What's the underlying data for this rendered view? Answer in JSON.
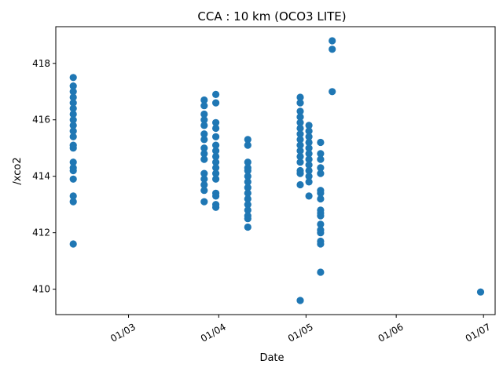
{
  "chart_data": {
    "type": "scatter",
    "title": "CCA : 10 km (OCO3 LITE)",
    "xlabel": "Date",
    "ylabel": "/xco2",
    "x_axis_type": "date",
    "xlim": [
      "2021-02-04",
      "2021-07-05"
    ],
    "ylim": [
      409.1,
      419.3
    ],
    "grid": false,
    "legend": "none",
    "xticks": [
      {
        "date": "2021-03-01",
        "label": "01/03"
      },
      {
        "date": "2021-04-01",
        "label": "01/04"
      },
      {
        "date": "2021-05-01",
        "label": "01/05"
      },
      {
        "date": "2021-06-01",
        "label": "01/06"
      },
      {
        "date": "2021-07-01",
        "label": "01/07"
      }
    ],
    "yticks": [
      410,
      412,
      414,
      416,
      418
    ],
    "marker_color": "#1f77b4",
    "series": [
      {
        "points": [
          {
            "x": "2021-02-10",
            "y": 417.5
          },
          {
            "x": "2021-02-10",
            "y": 417.2
          },
          {
            "x": "2021-02-10",
            "y": 417.0
          },
          {
            "x": "2021-02-10",
            "y": 416.8
          },
          {
            "x": "2021-02-10",
            "y": 416.6
          },
          {
            "x": "2021-02-10",
            "y": 416.4
          },
          {
            "x": "2021-02-10",
            "y": 416.2
          },
          {
            "x": "2021-02-10",
            "y": 416.0
          },
          {
            "x": "2021-02-10",
            "y": 415.8
          },
          {
            "x": "2021-02-10",
            "y": 415.6
          },
          {
            "x": "2021-02-10",
            "y": 415.4
          },
          {
            "x": "2021-02-10",
            "y": 415.1
          },
          {
            "x": "2021-02-10",
            "y": 415.0
          },
          {
            "x": "2021-02-10",
            "y": 414.5
          },
          {
            "x": "2021-02-10",
            "y": 414.3
          },
          {
            "x": "2021-02-10",
            "y": 414.2
          },
          {
            "x": "2021-02-10",
            "y": 413.9
          },
          {
            "x": "2021-02-10",
            "y": 413.3
          },
          {
            "x": "2021-02-10",
            "y": 413.1
          },
          {
            "x": "2021-02-10",
            "y": 411.6
          },
          {
            "x": "2021-03-27",
            "y": 416.7
          },
          {
            "x": "2021-03-27",
            "y": 416.5
          },
          {
            "x": "2021-03-27",
            "y": 416.2
          },
          {
            "x": "2021-03-27",
            "y": 416.0
          },
          {
            "x": "2021-03-27",
            "y": 415.8
          },
          {
            "x": "2021-03-27",
            "y": 415.5
          },
          {
            "x": "2021-03-27",
            "y": 415.3
          },
          {
            "x": "2021-03-27",
            "y": 415.0
          },
          {
            "x": "2021-03-27",
            "y": 414.8
          },
          {
            "x": "2021-03-27",
            "y": 414.6
          },
          {
            "x": "2021-03-27",
            "y": 414.1
          },
          {
            "x": "2021-03-27",
            "y": 413.9
          },
          {
            "x": "2021-03-27",
            "y": 413.7
          },
          {
            "x": "2021-03-27",
            "y": 413.5
          },
          {
            "x": "2021-03-27",
            "y": 413.1
          },
          {
            "x": "2021-03-31",
            "y": 416.9
          },
          {
            "x": "2021-03-31",
            "y": 416.6
          },
          {
            "x": "2021-03-31",
            "y": 415.9
          },
          {
            "x": "2021-03-31",
            "y": 415.7
          },
          {
            "x": "2021-03-31",
            "y": 415.4
          },
          {
            "x": "2021-03-31",
            "y": 415.1
          },
          {
            "x": "2021-03-31",
            "y": 414.9
          },
          {
            "x": "2021-03-31",
            "y": 414.7
          },
          {
            "x": "2021-03-31",
            "y": 414.5
          },
          {
            "x": "2021-03-31",
            "y": 414.3
          },
          {
            "x": "2021-03-31",
            "y": 414.1
          },
          {
            "x": "2021-03-31",
            "y": 413.9
          },
          {
            "x": "2021-03-31",
            "y": 413.4
          },
          {
            "x": "2021-03-31",
            "y": 413.3
          },
          {
            "x": "2021-03-31",
            "y": 413.0
          },
          {
            "x": "2021-03-31",
            "y": 412.9
          },
          {
            "x": "2021-04-11",
            "y": 415.3
          },
          {
            "x": "2021-04-11",
            "y": 415.1
          },
          {
            "x": "2021-04-11",
            "y": 414.5
          },
          {
            "x": "2021-04-11",
            "y": 414.3
          },
          {
            "x": "2021-04-11",
            "y": 414.2
          },
          {
            "x": "2021-04-11",
            "y": 414.0
          },
          {
            "x": "2021-04-11",
            "y": 413.8
          },
          {
            "x": "2021-04-11",
            "y": 413.6
          },
          {
            "x": "2021-04-11",
            "y": 413.4
          },
          {
            "x": "2021-04-11",
            "y": 413.2
          },
          {
            "x": "2021-04-11",
            "y": 413.0
          },
          {
            "x": "2021-04-11",
            "y": 412.8
          },
          {
            "x": "2021-04-11",
            "y": 412.6
          },
          {
            "x": "2021-04-11",
            "y": 412.5
          },
          {
            "x": "2021-04-11",
            "y": 412.2
          },
          {
            "x": "2021-04-29",
            "y": 416.8
          },
          {
            "x": "2021-04-29",
            "y": 416.6
          },
          {
            "x": "2021-04-29",
            "y": 416.3
          },
          {
            "x": "2021-04-29",
            "y": 416.1
          },
          {
            "x": "2021-04-29",
            "y": 415.9
          },
          {
            "x": "2021-04-29",
            "y": 415.7
          },
          {
            "x": "2021-04-29",
            "y": 415.5
          },
          {
            "x": "2021-04-29",
            "y": 415.3
          },
          {
            "x": "2021-04-29",
            "y": 415.1
          },
          {
            "x": "2021-04-29",
            "y": 414.9
          },
          {
            "x": "2021-04-29",
            "y": 414.7
          },
          {
            "x": "2021-04-29",
            "y": 414.5
          },
          {
            "x": "2021-04-29",
            "y": 414.2
          },
          {
            "x": "2021-04-29",
            "y": 414.1
          },
          {
            "x": "2021-04-29",
            "y": 413.7
          },
          {
            "x": "2021-04-29",
            "y": 409.6
          },
          {
            "x": "2021-05-02",
            "y": 415.8
          },
          {
            "x": "2021-05-02",
            "y": 415.6
          },
          {
            "x": "2021-05-02",
            "y": 415.4
          },
          {
            "x": "2021-05-02",
            "y": 415.2
          },
          {
            "x": "2021-05-02",
            "y": 415.0
          },
          {
            "x": "2021-05-02",
            "y": 414.8
          },
          {
            "x": "2021-05-02",
            "y": 414.6
          },
          {
            "x": "2021-05-02",
            "y": 414.4
          },
          {
            "x": "2021-05-02",
            "y": 414.2
          },
          {
            "x": "2021-05-02",
            "y": 414.0
          },
          {
            "x": "2021-05-02",
            "y": 413.8
          },
          {
            "x": "2021-05-02",
            "y": 413.3
          },
          {
            "x": "2021-05-06",
            "y": 415.2
          },
          {
            "x": "2021-05-06",
            "y": 414.8
          },
          {
            "x": "2021-05-06",
            "y": 414.6
          },
          {
            "x": "2021-05-06",
            "y": 414.3
          },
          {
            "x": "2021-05-06",
            "y": 414.1
          },
          {
            "x": "2021-05-06",
            "y": 413.5
          },
          {
            "x": "2021-05-06",
            "y": 413.4
          },
          {
            "x": "2021-05-06",
            "y": 413.2
          },
          {
            "x": "2021-05-06",
            "y": 412.8
          },
          {
            "x": "2021-05-06",
            "y": 412.7
          },
          {
            "x": "2021-05-06",
            "y": 412.6
          },
          {
            "x": "2021-05-06",
            "y": 412.3
          },
          {
            "x": "2021-05-06",
            "y": 412.1
          },
          {
            "x": "2021-05-06",
            "y": 412.0
          },
          {
            "x": "2021-05-06",
            "y": 411.7
          },
          {
            "x": "2021-05-06",
            "y": 411.6
          },
          {
            "x": "2021-05-06",
            "y": 410.6
          },
          {
            "x": "2021-05-10",
            "y": 418.8
          },
          {
            "x": "2021-05-10",
            "y": 418.5
          },
          {
            "x": "2021-05-10",
            "y": 417.0
          },
          {
            "x": "2021-06-30",
            "y": 409.9
          }
        ]
      }
    ]
  }
}
